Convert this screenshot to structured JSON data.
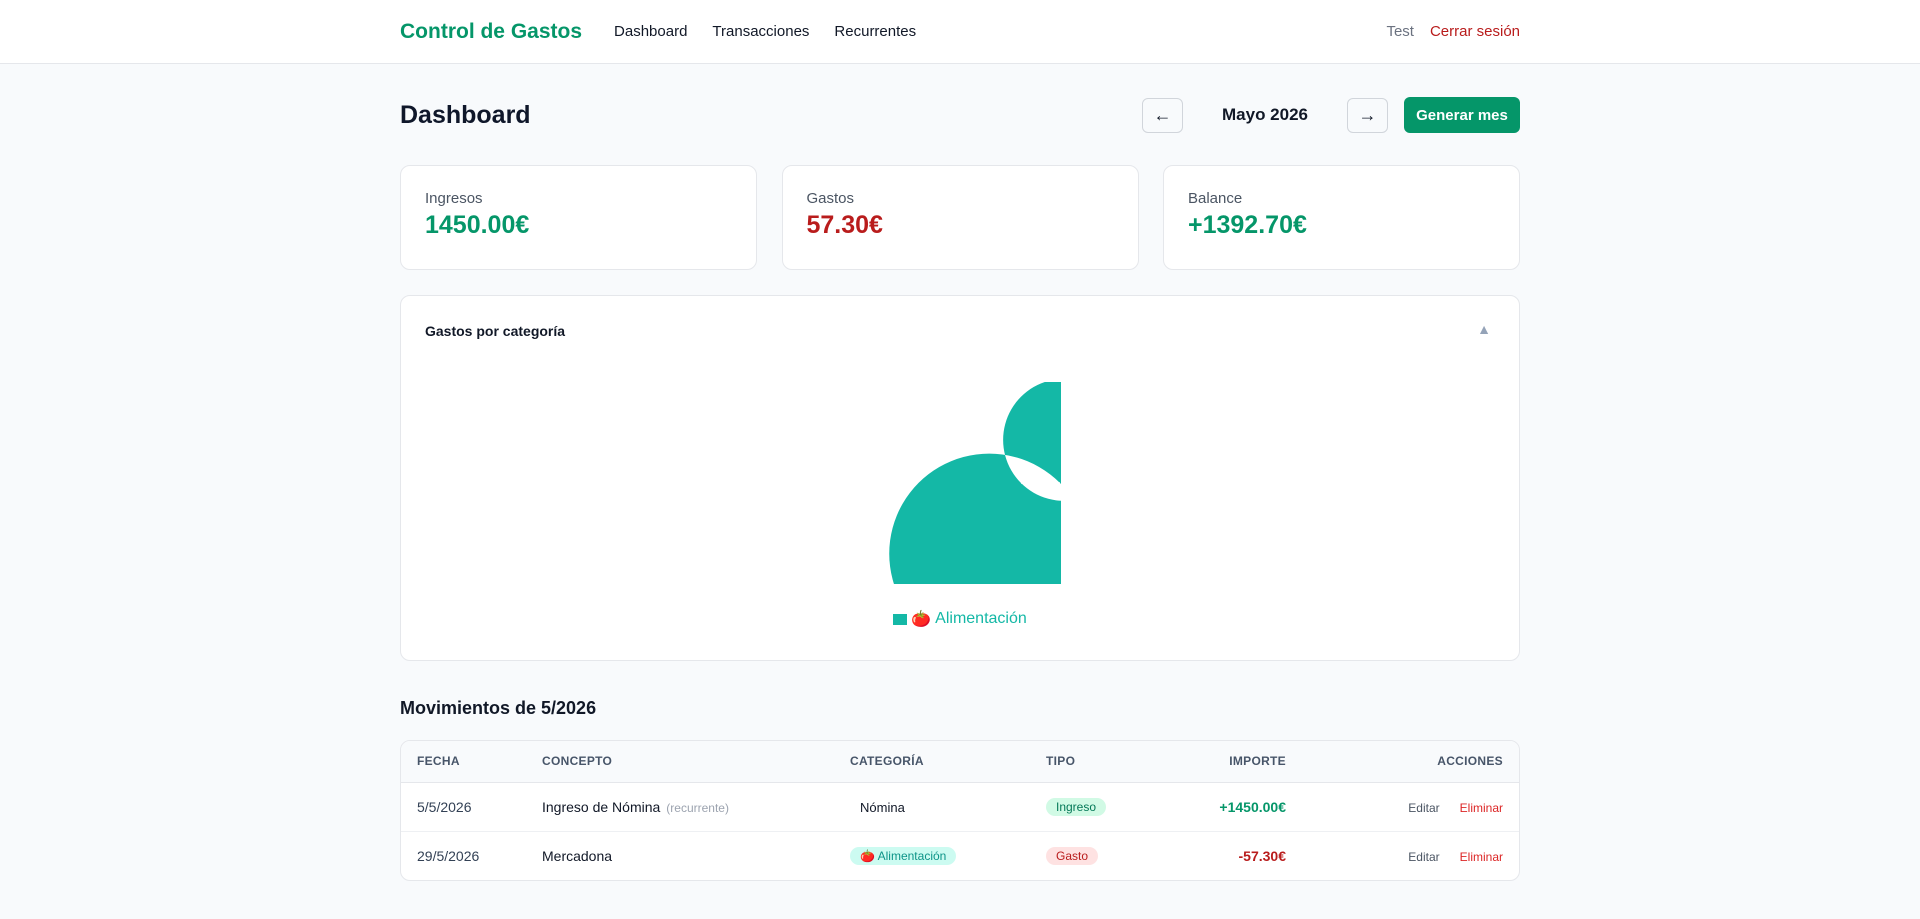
{
  "nav": {
    "brand": "Control de Gastos",
    "links": [
      "Dashboard",
      "Transacciones",
      "Recurrentes"
    ],
    "user": "Test",
    "logout": "Cerrar sesión"
  },
  "header": {
    "title": "Dashboard",
    "prev_label": "←",
    "next_label": "→",
    "month": "Mayo 2026",
    "generate_label": "Generar mes"
  },
  "summary": {
    "income_label": "Ingresos",
    "income_value": "1450.00€",
    "expense_label": "Gastos",
    "expense_value": "57.30€",
    "balance_label": "Balance",
    "balance_value": "+1392.70€"
  },
  "category_chart": {
    "title": "Gastos por categoría",
    "collapse_icon": "▲",
    "colors": {
      "slice": "#14b8a6"
    },
    "legend_emoji": "🍅",
    "legend_label": "Alimentación"
  },
  "chart_data": {
    "type": "pie",
    "categories": [
      "Alimentación"
    ],
    "values": [
      57.3
    ]
  },
  "movements": {
    "title": "Movimientos de 5/2026",
    "columns": [
      "FECHA",
      "CONCEPTO",
      "CATEGORÍA",
      "TIPO",
      "IMPORTE",
      "ACCIONES"
    ],
    "rows": [
      {
        "date": "5/5/2026",
        "concept": "Ingreso de Nómina",
        "recurrent": "(recurrente)",
        "category_emoji": "",
        "category": "Nómina",
        "type": "Ingreso",
        "amount": "+1450.00€",
        "edit": "Editar",
        "delete": "Eliminar"
      },
      {
        "date": "29/5/2026",
        "concept": "Mercadona",
        "recurrent": "",
        "category_emoji": "🍅",
        "category": "Alimentación",
        "type": "Gasto",
        "amount": "-57.30€",
        "edit": "Editar",
        "delete": "Eliminar"
      }
    ]
  },
  "colors": {
    "brand": "#059669",
    "income": "#059669",
    "expense": "#b91c1c",
    "teal": "#14b8a6"
  }
}
